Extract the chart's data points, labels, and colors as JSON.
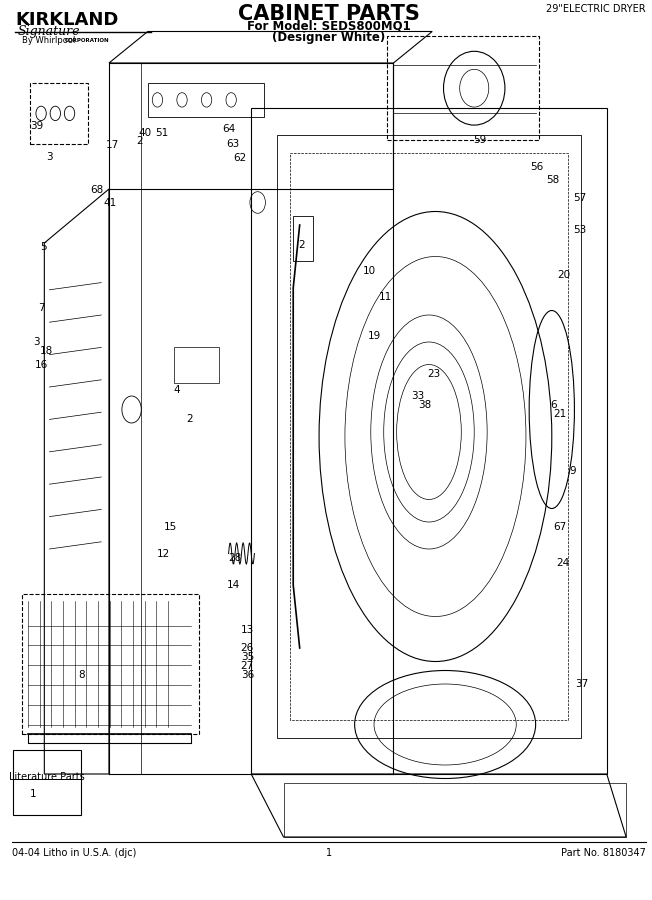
{
  "title": "CABINET PARTS",
  "subtitle_line1": "For Model: SEDS800MQ1",
  "subtitle_line2": "(Designer White)",
  "top_right_text": "29\"ELECTRIC DRYER",
  "brand_name": "KIRKLAND",
  "brand_sub": "Signature",
  "brand_by": "By Whirlpool",
  "brand_corp": "CORPORATION",
  "footer_left": "04-04 Litho in U.S.A. (djc)",
  "footer_center": "1",
  "footer_right": "Part No. 8180347",
  "literature_parts": "Literature Parts",
  "bg_color": "#ffffff",
  "line_color": "#000000",
  "fig_width": 6.52,
  "fig_height": 9.0,
  "dpi": 100
}
